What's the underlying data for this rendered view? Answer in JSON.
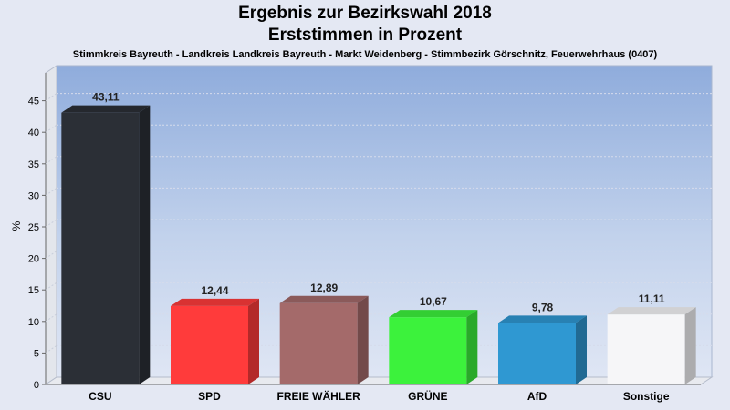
{
  "chart_data": {
    "type": "bar",
    "title": "Ergebnis zur Bezirkswahl 2018",
    "subtitle": "Erststimmen in Prozent",
    "description": "Stimmkreis Bayreuth - Landkreis Landkreis Bayreuth - Markt Weidenberg - Stimmbezirk Görschnitz, Feuerwehrhaus (0407)",
    "ylabel": "%",
    "ylim": [
      0,
      50
    ],
    "yticks": [
      0,
      5,
      10,
      15,
      20,
      25,
      30,
      35,
      40,
      45
    ],
    "grid": true,
    "categories": [
      "CSU",
      "SPD",
      "FREIE WÄHLER",
      "GRÜNE",
      "AfD",
      "Sonstige"
    ],
    "values": [
      43.11,
      12.44,
      12.89,
      10.67,
      9.78,
      11.11
    ],
    "value_labels": [
      "43,11",
      "12,44",
      "12,89",
      "10,67",
      "9,78",
      "11,11"
    ],
    "colors": [
      "#2b2f36",
      "#ff3b3b",
      "#a46a6a",
      "#3cf23c",
      "#2f98d2",
      "#f6f6f8"
    ]
  }
}
